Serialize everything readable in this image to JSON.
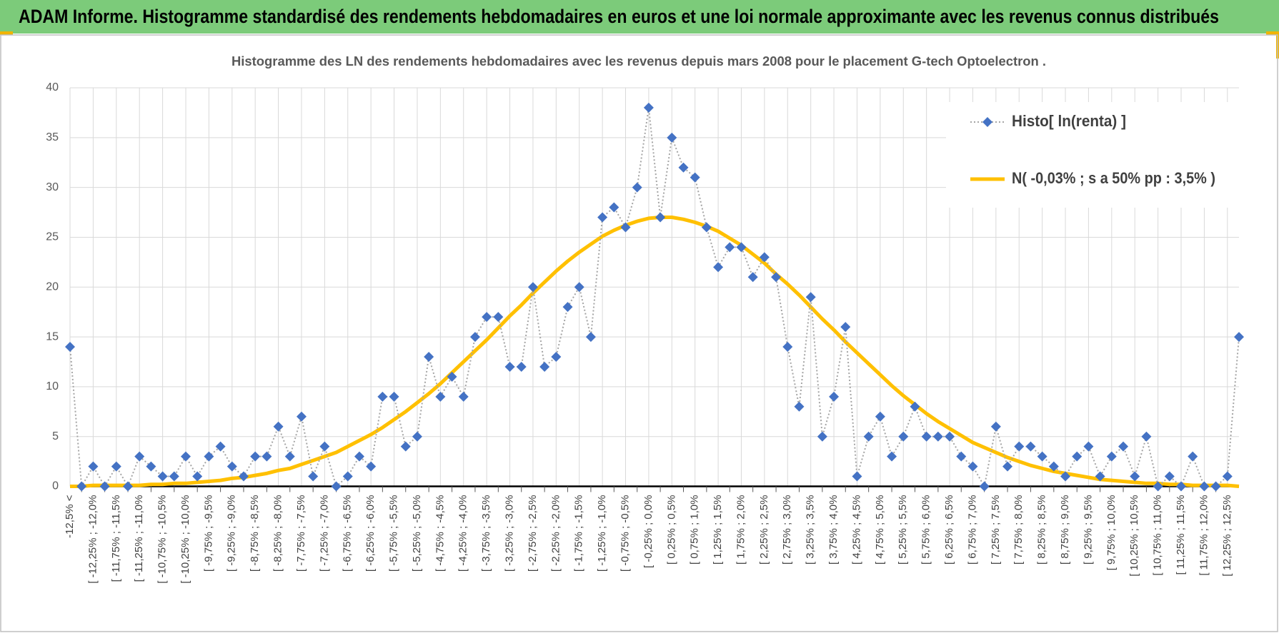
{
  "header": {
    "title": "ADAM Informe. Histogramme standardisé des rendements hebdomadaires en euros et une loi normale approximante avec les revenus connus distribués"
  },
  "chart_data": {
    "type": "line",
    "title": "Histogramme  des LN des rendements hebdomadaires avec les revenus depuis mars 2008 pour le placement G-tech Optoelectron .",
    "categories": [
      "-12,5% <",
      null,
      "[ -12,25% ; -12,0%",
      null,
      "[ -11,75% ; -11,5%",
      null,
      "[ -11,25% ; -11,0%",
      null,
      "[ -10,75% ; -10,5%",
      null,
      "[ -10,25% ; -10,0%",
      null,
      "[ -9,75% ; -9,5%",
      null,
      "[ -9,25% ; -9,0%",
      null,
      "[ -8,75% ; -8,5%",
      null,
      "[ -8,25% ; -8,0%",
      null,
      "[ -7,75% ; -7,5%",
      null,
      "[ -7,25% ; -7,0%",
      null,
      "[ -6,75% ; -6,5%",
      null,
      "[ -6,25% ; -6,0%",
      null,
      "[ -5,75% ; -5,5%",
      null,
      "[ -5,25% ; -5,0%",
      null,
      "[ -4,75% ; -4,5%",
      null,
      "[ -4,25% ; -4,0%",
      null,
      "[ -3,75% ; -3,5%",
      null,
      "[ -3,25% ; -3,0%",
      null,
      "[ -2,75% ; -2,5%",
      null,
      "[ -2,25% ; -2,0%",
      null,
      "[ -1,75% ; -1,5%",
      null,
      "[ -1,25% ; -1,0%",
      null,
      "[ -0,75% ; -0,5%",
      null,
      "[ -0,25% ; 0,0%",
      null,
      "[ 0,25% ; 0,5%",
      null,
      "[ 0,75% ; 1,0%",
      null,
      "[ 1,25% ; 1,5%",
      null,
      "[ 1,75% ; 2,0%",
      null,
      "[ 2,25% ; 2,5%",
      null,
      "[ 2,75% ; 3,0%",
      null,
      "[ 3,25% ; 3,5%",
      null,
      "[ 3,75% ; 4,0%",
      null,
      "[ 4,25% ; 4,5%",
      null,
      "[ 4,75% ; 5,0%",
      null,
      "[ 5,25% ; 5,5%",
      null,
      "[ 5,75% ; 6,0%",
      null,
      "[ 6,25% ; 6,5%",
      null,
      "[ 6,75% ; 7,0%",
      null,
      "[ 7,25% ; 7,5%",
      null,
      "[ 7,75% ; 8,0%",
      null,
      "[ 8,25% ; 8,5%",
      null,
      "[ 8,75% ; 9,0%",
      null,
      "[ 9,25% ; 9,5%",
      null,
      "[ 9,75% ; 10,0%",
      null,
      "[ 10,25% ; 10,5%",
      null,
      "[ 10,75% ; 11,0%",
      null,
      "[ 11,25% ; 11,5%",
      null,
      "[ 11,75% ; 12,0%",
      null,
      "[ 12,25% ; 12,5%",
      null
    ],
    "series": [
      {
        "name": "Histo[ ln(renta) ]",
        "color": "#4472c4",
        "line_color": "#a5a5a5",
        "marker": "diamond",
        "values": [
          14,
          0,
          2,
          0,
          2,
          0,
          3,
          2,
          1,
          1,
          3,
          1,
          3,
          4,
          2,
          1,
          3,
          3,
          6,
          3,
          7,
          1,
          4,
          0,
          1,
          3,
          2,
          9,
          9,
          4,
          5,
          13,
          9,
          11,
          9,
          15,
          17,
          17,
          12,
          12,
          20,
          12,
          13,
          18,
          20,
          15,
          27,
          28,
          26,
          30,
          38,
          27,
          35,
          32,
          31,
          26,
          22,
          24,
          24,
          21,
          23,
          21,
          14,
          8,
          19,
          5,
          9,
          16,
          1,
          5,
          7,
          3,
          5,
          8,
          5,
          5,
          5,
          3,
          2,
          0,
          6,
          2,
          4,
          4,
          3,
          2,
          1,
          3,
          4,
          1,
          3,
          4,
          1,
          5,
          0,
          1,
          0,
          3,
          0,
          0,
          1,
          15
        ]
      },
      {
        "name": "N( -0,03% ; s a 50% pp : 3,5% )",
        "color": "#ffc000",
        "values": [
          0.0,
          0.0,
          0.1,
          0.1,
          0.1,
          0.1,
          0.1,
          0.2,
          0.2,
          0.3,
          0.3,
          0.4,
          0.5,
          0.6,
          0.8,
          0.9,
          1.1,
          1.3,
          1.6,
          1.8,
          2.2,
          2.6,
          3.0,
          3.4,
          4.0,
          4.6,
          5.2,
          5.9,
          6.7,
          7.5,
          8.4,
          9.3,
          10.3,
          11.4,
          12.5,
          13.6,
          14.7,
          15.9,
          17.1,
          18.2,
          19.4,
          20.5,
          21.6,
          22.6,
          23.5,
          24.3,
          25.1,
          25.7,
          26.2,
          26.6,
          26.9,
          27.0,
          27.0,
          26.8,
          26.5,
          26.1,
          25.6,
          24.9,
          24.2,
          23.3,
          22.4,
          21.3,
          20.3,
          19.2,
          18.0,
          16.8,
          15.7,
          14.5,
          13.4,
          12.3,
          11.2,
          10.1,
          9.1,
          8.2,
          7.3,
          6.5,
          5.8,
          5.1,
          4.4,
          3.9,
          3.4,
          2.9,
          2.5,
          2.1,
          1.8,
          1.5,
          1.3,
          1.1,
          0.9,
          0.7,
          0.6,
          0.5,
          0.4,
          0.3,
          0.3,
          0.2,
          0.2,
          0.1,
          0.1,
          0.1,
          0.1,
          0.0
        ]
      }
    ],
    "ylim": [
      0,
      40
    ],
    "yticks": [
      0,
      5,
      10,
      15,
      20,
      25,
      30,
      35,
      40
    ],
    "grid": true,
    "legend": "top-right"
  }
}
